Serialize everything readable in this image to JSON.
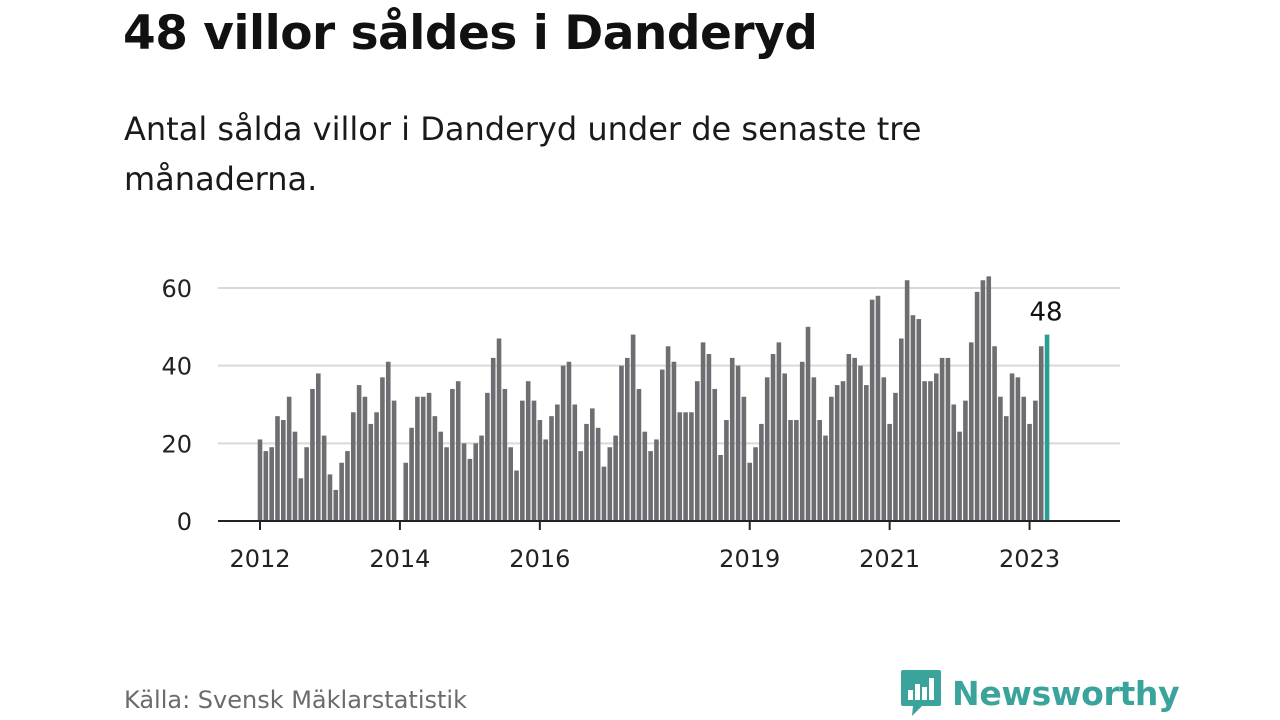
{
  "header": {
    "title": "48 villor såldes i Danderyd",
    "subtitle": "Antal sålda villor i Danderyd under de senaste tre månaderna."
  },
  "footer": {
    "source": "Källa: Svensk Mäklarstatistik",
    "brand": "Newsworthy"
  },
  "colors": {
    "bar": "#6e6d72",
    "highlight": "#2a9d94",
    "grid": "#d9d9d9",
    "axis": "#222222",
    "brand": "#3aa39b"
  },
  "chart_data": {
    "type": "bar",
    "title": "48 villor såldes i Danderyd",
    "xlabel": "",
    "ylabel": "",
    "ylim": [
      0,
      65
    ],
    "yticks": [
      0,
      20,
      40,
      60
    ],
    "xticks": [
      {
        "label": "2012",
        "index": 0
      },
      {
        "label": "2014",
        "index": 24
      },
      {
        "label": "2016",
        "index": 48
      },
      {
        "label": "2019",
        "index": 84
      },
      {
        "label": "2021",
        "index": 108
      },
      {
        "label": "2023",
        "index": 132
      }
    ],
    "grid": true,
    "start": "2012-01",
    "end": "2023-04",
    "values": [
      21,
      18,
      19,
      27,
      26,
      32,
      23,
      11,
      19,
      34,
      38,
      22,
      12,
      8,
      15,
      18,
      28,
      35,
      32,
      25,
      28,
      37,
      41,
      31,
      0,
      15,
      24,
      32,
      32,
      33,
      27,
      23,
      19,
      34,
      36,
      20,
      16,
      20,
      22,
      33,
      42,
      47,
      34,
      19,
      13,
      31,
      36,
      31,
      26,
      21,
      27,
      30,
      40,
      41,
      30,
      18,
      25,
      29,
      24,
      14,
      19,
      22,
      40,
      42,
      48,
      34,
      23,
      18,
      21,
      39,
      45,
      41,
      28,
      28,
      28,
      36,
      46,
      43,
      34,
      17,
      26,
      42,
      40,
      32,
      15,
      19,
      25,
      37,
      43,
      46,
      38,
      26,
      26,
      41,
      50,
      37,
      26,
      22,
      32,
      35,
      36,
      43,
      42,
      40,
      35,
      57,
      58,
      37,
      25,
      33,
      47,
      62,
      53,
      52,
      36,
      36,
      38,
      42,
      42,
      30,
      23,
      31,
      46,
      59,
      62,
      63,
      45,
      32,
      27,
      38,
      37,
      32,
      25,
      31,
      45,
      48
    ],
    "highlight_index": 135,
    "highlight_label": "48"
  }
}
